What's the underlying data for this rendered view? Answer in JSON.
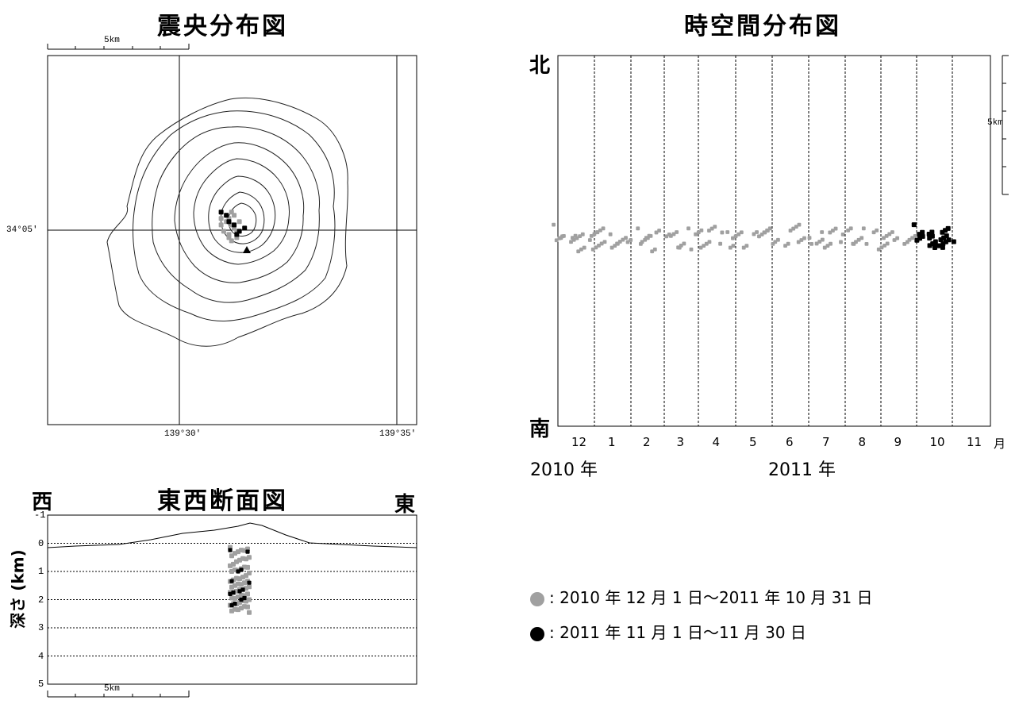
{
  "epicenter": {
    "title": "震央分布図",
    "scale_label": "5km",
    "lat_label": "34°05'",
    "lon_labels": [
      "139°30'",
      "139°35'"
    ]
  },
  "spacetime": {
    "title": "時空間分布図",
    "north": "北",
    "south": "南",
    "scale_label": "5km",
    "month_labels": [
      "12",
      "1",
      "2",
      "3",
      "4",
      "5",
      "6",
      "7",
      "8",
      "9",
      "10",
      "11"
    ],
    "month_unit": "月",
    "year_labels": [
      "2010 年",
      "2011 年"
    ]
  },
  "section": {
    "title": "東西断面図",
    "west": "西",
    "east": "東",
    "ylabel": "深さ (km)",
    "yticks": [
      "-1",
      "0",
      "1",
      "2",
      "3",
      "4",
      "5"
    ],
    "scale_label": "5km"
  },
  "legend": {
    "items": [
      {
        "text": ": 2010 年 12 月 1 日～2011 年 10 月 31 日",
        "color": "#a0a0a0"
      },
      {
        "text": ": 2011 年 11 月 1 日～11 月 30 日",
        "color": "#000000"
      }
    ]
  },
  "chart_data": [
    {
      "type": "scatter",
      "title": "震央分布図",
      "xlabel": "",
      "ylabel": "",
      "x_ticks": [
        "139°30'",
        "139°35'"
      ],
      "y_ticks": [
        "34°05'"
      ],
      "series": [
        {
          "color": "#a0a0a0",
          "points": [
            [
              139.516,
              34.085
            ],
            [
              139.518,
              34.086
            ],
            [
              139.519,
              34.087
            ],
            [
              139.52,
              34.085
            ],
            [
              139.521,
              34.084
            ],
            [
              139.517,
              34.083
            ],
            [
              139.519,
              34.082
            ],
            [
              139.522,
              34.083
            ],
            [
              139.518,
              34.088
            ],
            [
              139.52,
              34.089
            ],
            [
              139.516,
              34.087
            ],
            [
              139.523,
              34.086
            ],
            [
              139.521,
              34.088
            ],
            [
              139.519,
              34.081
            ],
            [
              139.52,
              34.08
            ],
            [
              139.522,
              34.081
            ]
          ]
        },
        {
          "color": "#000000",
          "points": [
            [
              139.516,
              34.089
            ],
            [
              139.518,
              34.088
            ],
            [
              139.521,
              34.085
            ],
            [
              139.523,
              34.083
            ],
            [
              139.522,
              34.082
            ],
            [
              139.525,
              34.084
            ],
            [
              139.519,
              34.086
            ]
          ]
        }
      ]
    },
    {
      "type": "scatter",
      "title": "時空間分布図",
      "x_categories": [
        "12",
        "1",
        "2",
        "3",
        "4",
        "5",
        "6",
        "7",
        "8",
        "9",
        "10",
        "11"
      ],
      "x_unit": "月",
      "series": [
        {
          "color": "#a0a0a0",
          "points_month_ns": [
            [
              0.1,
              0.52
            ],
            [
              0.3,
              0.5
            ],
            [
              0.5,
              0.49
            ],
            [
              0.7,
              0.51
            ],
            [
              0.9,
              0.5
            ],
            [
              1.1,
              0.49
            ],
            [
              1.3,
              0.51
            ],
            [
              1.5,
              0.5
            ],
            [
              1.8,
              0.49
            ],
            [
              2.1,
              0.51
            ],
            [
              2.4,
              0.5
            ],
            [
              2.7,
              0.49
            ],
            [
              3.0,
              0.52
            ],
            [
              3.3,
              0.5
            ],
            [
              3.6,
              0.49
            ],
            [
              3.9,
              0.51
            ],
            [
              4.2,
              0.5
            ],
            [
              4.5,
              0.52
            ],
            [
              4.8,
              0.5
            ],
            [
              5.1,
              0.51
            ],
            [
              5.4,
              0.5
            ],
            [
              5.7,
              0.52
            ],
            [
              6.0,
              0.51
            ],
            [
              6.3,
              0.5
            ],
            [
              6.6,
              0.52
            ],
            [
              6.9,
              0.51
            ],
            [
              7.2,
              0.49
            ],
            [
              7.5,
              0.5
            ],
            [
              7.8,
              0.52
            ],
            [
              8.1,
              0.51
            ],
            [
              8.4,
              0.5
            ],
            [
              8.7,
              0.51
            ],
            [
              9.0,
              0.49
            ],
            [
              9.3,
              0.5
            ],
            [
              9.6,
              0.51
            ],
            [
              9.9,
              0.5
            ]
          ]
        },
        {
          "color": "#000000",
          "points_month_ns": [
            [
              10.15,
              0.52
            ],
            [
              10.3,
              0.51
            ],
            [
              10.45,
              0.5
            ],
            [
              10.55,
              0.49
            ],
            [
              10.7,
              0.51
            ],
            [
              10.8,
              0.5
            ],
            [
              10.9,
              0.49
            ]
          ]
        }
      ]
    },
    {
      "type": "scatter",
      "title": "東西断面図",
      "ylabel": "深さ (km)",
      "ylim": [
        5,
        -1
      ],
      "yticks": [
        -1,
        0,
        1,
        2,
        3,
        4,
        5
      ],
      "series": [
        {
          "color": "#a0a0a0",
          "depths_km": [
            0.2,
            0.3,
            0.5,
            0.6,
            0.8,
            0.9,
            1.0,
            1.2,
            1.3,
            1.4,
            1.5,
            1.6,
            1.7,
            1.8,
            1.9,
            2.0,
            2.1,
            2.2,
            2.3,
            2.4
          ]
        },
        {
          "color": "#000000",
          "depths_km": [
            0.3,
            1.0,
            1.4,
            1.7,
            1.8,
            2.0,
            2.2
          ]
        }
      ]
    }
  ]
}
